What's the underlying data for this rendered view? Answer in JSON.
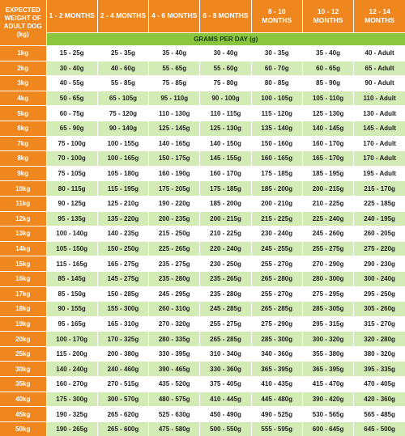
{
  "header": {
    "weight_label": "EXPECTED WEIGHT OF ADULT DOG (kg)",
    "months": [
      "1 - 2 MONTHS",
      "2 - 4 MONTHS",
      "4 - 6 MONTHS",
      "6 - 8 MONTHS",
      "8 - 10 MONTHS",
      "10 - 12 MONTHS",
      "12 - 14 MONTHS"
    ],
    "grams_label": "GRAMS PER DAY (g)"
  },
  "colors": {
    "orange": "#f0871e",
    "green": "#8cc63f",
    "light_green": "#d3ebb4"
  },
  "rows": [
    {
      "weight": "1kg",
      "values": [
        "15 - 25g",
        "25 - 35g",
        "35 - 40g",
        "30 - 40g",
        "30 - 35g",
        "35 - 40g",
        "40 - Adult"
      ]
    },
    {
      "weight": "2kg",
      "values": [
        "30 - 40g",
        "40 - 60g",
        "55 - 65g",
        "55 - 60g",
        "60 - 70g",
        "60 - 65g",
        "65 - Adult"
      ]
    },
    {
      "weight": "3kg",
      "values": [
        "40 - 55g",
        "55 - 85g",
        "75 - 85g",
        "75 - 80g",
        "80 - 85g",
        "85 - 90g",
        "90 - Adult"
      ]
    },
    {
      "weight": "4kg",
      "values": [
        "50 - 65g",
        "65 - 105g",
        "95 - 110g",
        "90 - 100g",
        "100 - 105g",
        "105 - 110g",
        "110 - Adult"
      ]
    },
    {
      "weight": "5kg",
      "values": [
        "60 - 75g",
        "75 - 120g",
        "110 - 130g",
        "110 - 115g",
        "115 - 120g",
        "125 - 130g",
        "130 - Adult"
      ]
    },
    {
      "weight": "6kg",
      "values": [
        "65 - 90g",
        "90 - 140g",
        "125 - 145g",
        "125 - 130g",
        "135 - 140g",
        "140 - 145g",
        "145 - Adult"
      ]
    },
    {
      "weight": "7kg",
      "values": [
        "75 - 100g",
        "100 - 155g",
        "140 - 165g",
        "140 - 150g",
        "150 - 160g",
        "160 - 170g",
        "170 - Adult"
      ]
    },
    {
      "weight": "8kg",
      "values": [
        "70 - 100g",
        "100 - 165g",
        "150 - 175g",
        "145 - 155g",
        "160 - 165g",
        "165 - 170g",
        "170 - Adult"
      ]
    },
    {
      "weight": "9kg",
      "values": [
        "75 - 105g",
        "105 - 180g",
        "160 - 190g",
        "160 - 170g",
        "175 - 185g",
        "185 - 195g",
        "195 - Adult"
      ]
    },
    {
      "weight": "10kg",
      "values": [
        "80 - 115g",
        "115 - 195g",
        "175 - 205g",
        "175 - 185g",
        "185 - 200g",
        "200 - 215g",
        "215 - 170g"
      ]
    },
    {
      "weight": "11kg",
      "values": [
        "90 - 125g",
        "125 - 210g",
        "190 - 220g",
        "185 - 200g",
        "200 - 210g",
        "210 - 225g",
        "225 - 185g"
      ]
    },
    {
      "weight": "12kg",
      "values": [
        "95 - 135g",
        "135 - 220g",
        "200 - 235g",
        "200 - 215g",
        "215 - 225g",
        "225 - 240g",
        "240 - 195g"
      ]
    },
    {
      "weight": "13kg",
      "values": [
        "100 - 140g",
        "140 - 235g",
        "215 - 250g",
        "210 - 225g",
        "230 - 240g",
        "245 - 260g",
        "260 - 205g"
      ]
    },
    {
      "weight": "14kg",
      "values": [
        "105 - 150g",
        "150 - 250g",
        "225 - 265g",
        "220 - 240g",
        "245 - 255g",
        "255 - 275g",
        "275 - 220g"
      ]
    },
    {
      "weight": "15kg",
      "values": [
        "115 - 165g",
        "165 - 275g",
        "235 - 275g",
        "230 - 250g",
        "255 - 270g",
        "270 - 290g",
        "290 - 230g"
      ]
    },
    {
      "weight": "16kg",
      "values": [
        "85 - 145g",
        "145 - 275g",
        "235 - 280g",
        "235 - 265g",
        "265 - 280g",
        "280 - 300g",
        "300 - 240g"
      ]
    },
    {
      "weight": "17kg",
      "values": [
        "85 - 150g",
        "150 - 285g",
        "245 - 295g",
        "235 - 280g",
        "255 - 270g",
        "275 - 295g",
        "295 - 250g"
      ]
    },
    {
      "weight": "18kg",
      "values": [
        "90 - 155g",
        "155 - 300g",
        "260 - 310g",
        "245 - 285g",
        "265 - 285g",
        "285 - 305g",
        "305 - 260g"
      ]
    },
    {
      "weight": "19kg",
      "values": [
        "95 - 165g",
        "165 - 310g",
        "270 - 320g",
        "255 - 275g",
        "275 - 290g",
        "295 - 315g",
        "315 - 270g"
      ]
    },
    {
      "weight": "20kg",
      "values": [
        "100 - 170g",
        "170 - 325g",
        "280 - 335g",
        "265 - 285g",
        "285 - 300g",
        "300 - 320g",
        "320 - 280g"
      ]
    },
    {
      "weight": "25kg",
      "values": [
        "115 - 200g",
        "200 - 380g",
        "330 - 395g",
        "310 - 340g",
        "340 - 360g",
        "355 - 380g",
        "380 - 320g"
      ]
    },
    {
      "weight": "30kg",
      "values": [
        "140 - 240g",
        "240 - 460g",
        "390 - 465g",
        "330 - 360g",
        "365 - 395g",
        "365 - 395g",
        "395 - 335g"
      ]
    },
    {
      "weight": "35kg",
      "values": [
        "160 - 270g",
        "270 - 515g",
        "435 - 520g",
        "375 - 405g",
        "410 - 435g",
        "415 - 470g",
        "470 - 405g"
      ]
    },
    {
      "weight": "40kg",
      "values": [
        "175 - 300g",
        "300 - 570g",
        "480 - 575g",
        "410 - 445g",
        "445 - 480g",
        "390 - 420g",
        "420 - 360g"
      ]
    },
    {
      "weight": "45kg",
      "values": [
        "190 - 325g",
        "265 - 620g",
        "525 - 630g",
        "450 - 490g",
        "490 - 525g",
        "530 - 565g",
        "565 - 485g"
      ]
    },
    {
      "weight": "50kg",
      "values": [
        "190 - 265g",
        "265 - 600g",
        "475 - 580g",
        "500 - 550g",
        "555 - 595g",
        "600 - 645g",
        "645 - 500g"
      ]
    }
  ]
}
